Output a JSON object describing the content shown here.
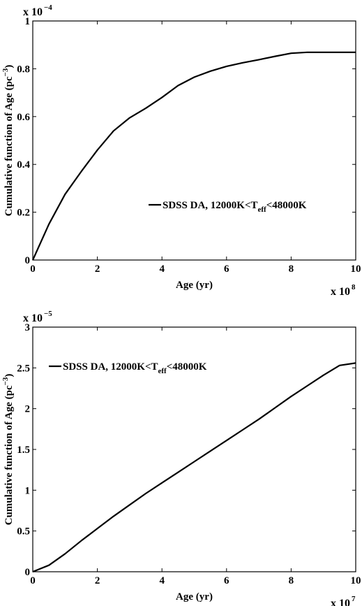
{
  "chart_data": [
    {
      "type": "line",
      "xlabel": "Age (yr)",
      "ylabel_main": "Cumulative function of Age (pc",
      "ylabel_sup": "−3",
      "ylabel_close": ")",
      "x_multiplier_base": "x 10",
      "x_multiplier_exp": "8",
      "y_multiplier_base": "x 10",
      "y_multiplier_exp": "−4",
      "xlim": [
        0,
        10
      ],
      "ylim": [
        0,
        1
      ],
      "x_ticks": [
        0,
        2,
        4,
        6,
        8,
        10
      ],
      "x_tick_labels": [
        "0",
        "2",
        "4",
        "6",
        "8",
        "10"
      ],
      "y_ticks": [
        0,
        0.2,
        0.4,
        0.6,
        0.8,
        1
      ],
      "y_tick_labels": [
        "0",
        "0.2",
        "0.4",
        "0.6",
        "0.8",
        "1"
      ],
      "legend_placement": "center-right",
      "series": [
        {
          "name_pre": "SDSS DA, 12000K<T",
          "name_sub": "eff",
          "name_post": "<48000K",
          "color": "#000000",
          "x": [
            0,
            0.5,
            1.0,
            1.5,
            2.0,
            2.5,
            3.0,
            3.5,
            4.0,
            4.5,
            5.0,
            5.5,
            6.0,
            6.5,
            7.0,
            7.5,
            8.0,
            8.5,
            9.0,
            9.5,
            10.0
          ],
          "y": [
            0,
            0.15,
            0.275,
            0.37,
            0.46,
            0.54,
            0.595,
            0.635,
            0.68,
            0.73,
            0.765,
            0.79,
            0.81,
            0.825,
            0.838,
            0.852,
            0.865,
            0.869,
            0.869,
            0.869,
            0.869
          ]
        }
      ]
    },
    {
      "type": "line",
      "xlabel": "Age (yr)",
      "ylabel_main": "Cumulative function of Age (pc",
      "ylabel_sup": "−3",
      "ylabel_close": ")",
      "x_multiplier_base": "x 10",
      "x_multiplier_exp": "7",
      "y_multiplier_base": "x 10",
      "y_multiplier_exp": "−5",
      "xlim": [
        0,
        10
      ],
      "ylim": [
        0,
        3
      ],
      "x_ticks": [
        0,
        2,
        4,
        6,
        8,
        10
      ],
      "x_tick_labels": [
        "0",
        "2",
        "4",
        "6",
        "8",
        "10"
      ],
      "y_ticks": [
        0,
        0.5,
        1,
        1.5,
        2,
        2.5,
        3
      ],
      "y_tick_labels": [
        "0",
        "0.5",
        "1",
        "1.5",
        "2",
        "2.5",
        "3"
      ],
      "legend_placement": "top-left",
      "series": [
        {
          "name_pre": "SDSS DA, 12000K<T",
          "name_sub": "eff",
          "name_post": "<48000K",
          "color": "#000000",
          "x": [
            0,
            0.5,
            1.0,
            1.5,
            2.0,
            2.5,
            3.0,
            3.5,
            4.0,
            4.5,
            5.0,
            5.5,
            6.0,
            6.5,
            7.0,
            7.5,
            8.0,
            8.5,
            9.0,
            9.5,
            10.0
          ],
          "y": [
            0,
            0.08,
            0.22,
            0.38,
            0.53,
            0.68,
            0.82,
            0.96,
            1.09,
            1.22,
            1.35,
            1.48,
            1.61,
            1.74,
            1.87,
            2.01,
            2.15,
            2.28,
            2.41,
            2.53,
            2.56
          ]
        }
      ]
    }
  ]
}
